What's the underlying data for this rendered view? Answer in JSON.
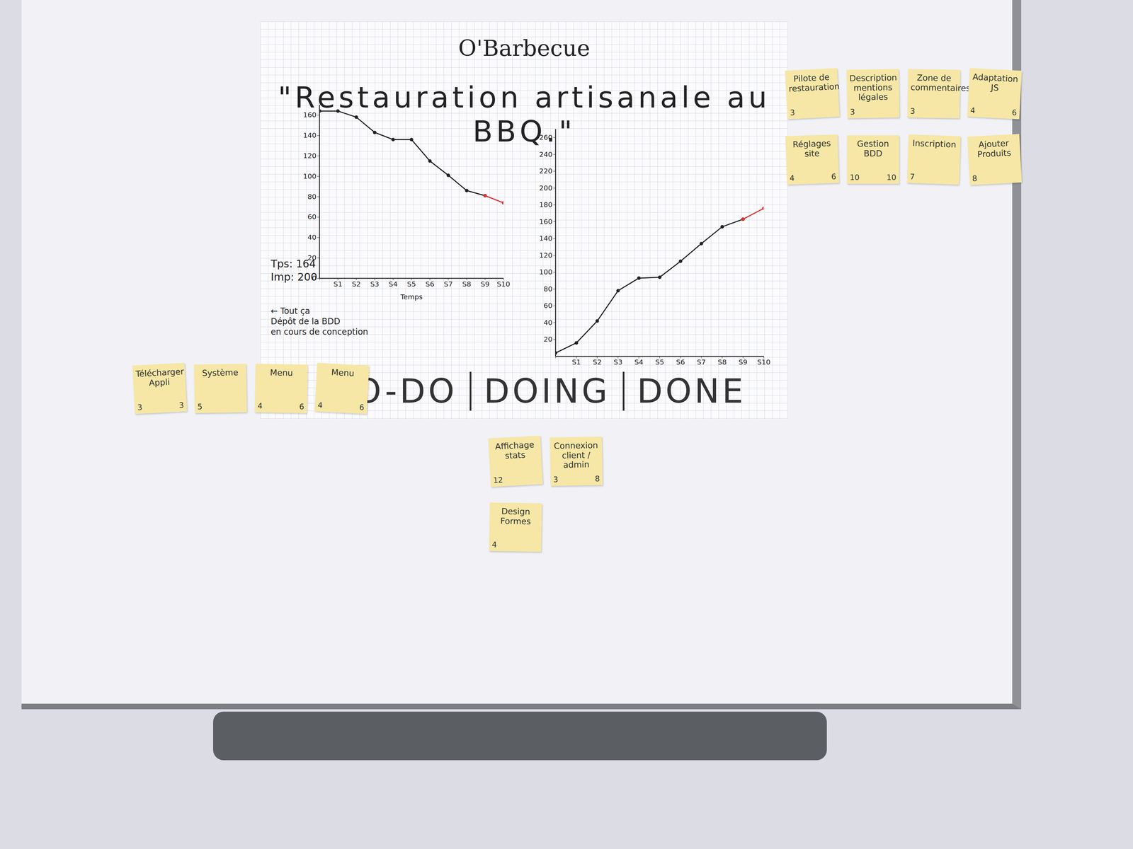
{
  "chart_data": [
    {
      "type": "line",
      "x_label": "Temps",
      "categories": [
        null,
        "S1",
        "S2",
        "S3",
        "S4",
        "S5",
        "S6",
        "S7",
        "S8",
        "S9",
        "S10"
      ],
      "series": [
        {
          "color": "#222222",
          "marker": "circle",
          "values": [
            164,
            164,
            158,
            143,
            136,
            136,
            115,
            101,
            86,
            81,
            null
          ]
        },
        {
          "color": "#e03030",
          "marker": "circle",
          "values": [
            null,
            null,
            null,
            null,
            null,
            null,
            null,
            null,
            null,
            81,
            74
          ]
        }
      ],
      "ylim": [
        0,
        170
      ],
      "yticks": [
        0,
        20,
        40,
        60,
        80,
        100,
        120,
        140,
        160
      ],
      "grid": false
    },
    {
      "type": "line",
      "categories": [
        null,
        "S1",
        "S2",
        "S3",
        "S4",
        "S5",
        "S6",
        "S7",
        "S8",
        "S9",
        "S10"
      ],
      "series": [
        {
          "color": "#222222",
          "marker": "circle",
          "values": [
            4,
            16,
            42,
            78,
            93,
            94,
            113,
            134,
            154,
            163,
            null
          ]
        },
        {
          "color": "#e03030",
          "marker": "circle",
          "values": [
            null,
            null,
            null,
            null,
            null,
            null,
            null,
            null,
            null,
            163,
            176
          ]
        }
      ],
      "ylim": [
        0,
        270
      ],
      "yticks": [
        20,
        40,
        60,
        80,
        100,
        120,
        140,
        160,
        180,
        200,
        220,
        240,
        260
      ],
      "grid": false
    }
  ],
  "board": {
    "title": "O'Barbecue",
    "subtitle": "\"Restauration artisanale au BBQ.\"",
    "side_notes": [
      "Tps: 164",
      "Imp: 200"
    ],
    "annotation": [
      "← Tout ça",
      "Dépôt de la BDD",
      "en cours de conception"
    ],
    "columns": [
      {
        "name": "TO-DO",
        "notes": [
          {
            "text": "Télécharger Appli",
            "points": [
              3,
              3
            ]
          },
          {
            "text": "Système",
            "points": [
              5
            ]
          },
          {
            "text": "Menu",
            "points": [
              4,
              6
            ]
          },
          {
            "text": "Menu",
            "points": [
              4,
              6
            ]
          }
        ]
      },
      {
        "name": "DOING",
        "notes": [
          {
            "text": "Affichage stats",
            "points": [
              12
            ]
          },
          {
            "text": "Connexion client / admin",
            "points": [
              3,
              8
            ]
          },
          {
            "text": "Design Formes",
            "points": [
              4
            ]
          }
        ]
      },
      {
        "name": "DONE",
        "notes": [
          {
            "text": "Pilote de restauration",
            "points": [
              3
            ]
          },
          {
            "text": "Description mentions légales",
            "points": [
              3
            ]
          },
          {
            "text": "Zone de commentaires",
            "points": [
              3
            ]
          },
          {
            "text": "Adaptation JS",
            "points": [
              4,
              6
            ]
          },
          {
            "text": "Réglages site",
            "points": [
              4,
              6
            ]
          },
          {
            "text": "Gestion BDD",
            "points": [
              10,
              10
            ]
          },
          {
            "text": "Inscription",
            "points": [
              7
            ]
          },
          {
            "text": "Ajouter Produits",
            "points": [
              8
            ]
          }
        ]
      }
    ]
  }
}
